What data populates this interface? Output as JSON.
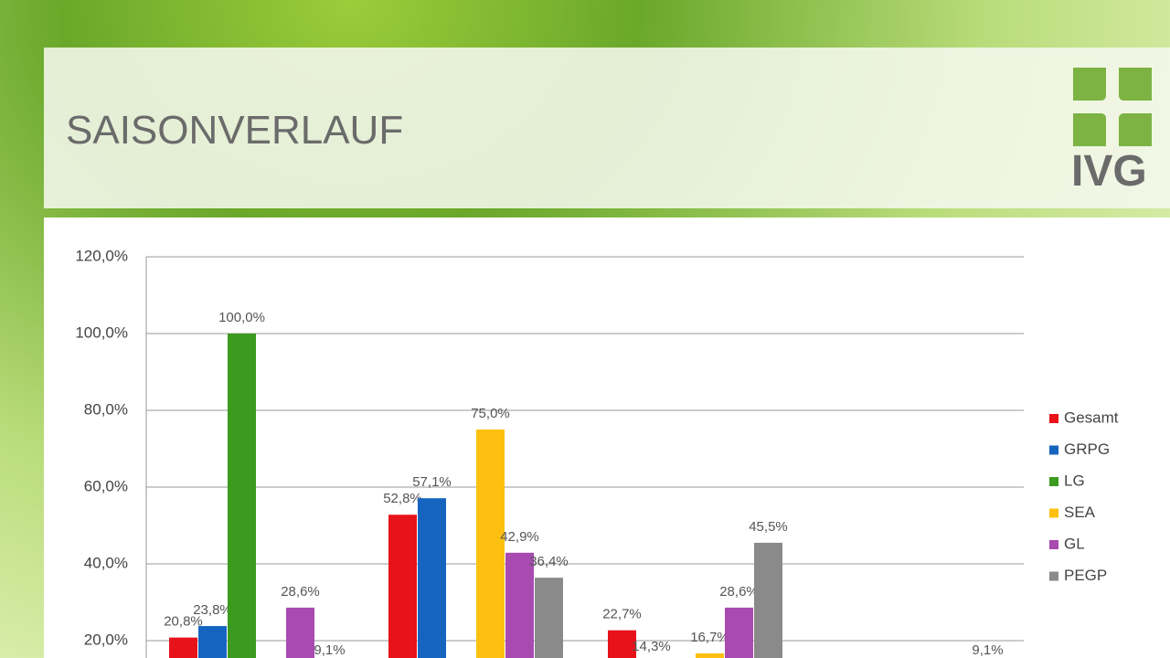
{
  "header": {
    "title": "SAISONVERLAUF",
    "logo": "IVG"
  },
  "chart_data": {
    "type": "bar",
    "categories": [
      null,
      null,
      null,
      null
    ],
    "series": [
      {
        "name": "Gesamt",
        "color": "#e8121b",
        "values": [
          20.8,
          52.8,
          22.7,
          null
        ],
        "value_labels": [
          "20,8%",
          "52,8%",
          "22,7%",
          null
        ]
      },
      {
        "name": "GRPG",
        "color": "#1565c0",
        "values": [
          23.8,
          57.1,
          14.3,
          null
        ],
        "value_labels": [
          "23,8%",
          "57,1%",
          "14,3%",
          null
        ]
      },
      {
        "name": "LG",
        "color": "#3c9a1e",
        "values": [
          100,
          null,
          null,
          null
        ],
        "value_labels": [
          "100,0%",
          null,
          null,
          null
        ]
      },
      {
        "name": "SEA",
        "color": "#fdc010",
        "values": [
          null,
          75,
          16.7,
          null
        ],
        "value_labels": [
          null,
          "75,0%",
          "16,7%",
          null
        ]
      },
      {
        "name": "GL",
        "color": "#a94ab0",
        "values": [
          28.6,
          42.9,
          28.6,
          null
        ],
        "value_labels": [
          "28,6%",
          "42,9%",
          "28,6%",
          null
        ]
      },
      {
        "name": "PEGP",
        "color": "#8a8a8a",
        "values": [
          9.1,
          36.4,
          45.5,
          9.1
        ],
        "value_labels": [
          "9,1%",
          "36,4%",
          "45,5%",
          "9,1%"
        ]
      }
    ],
    "ylim": [
      0,
      120
    ],
    "yticks": [
      {
        "value": 20,
        "label": "20,0%"
      },
      {
        "value": 40,
        "label": "40,0%"
      },
      {
        "value": 60,
        "label": "60,0%"
      },
      {
        "value": 80,
        "label": "80,0%"
      },
      {
        "value": 100,
        "label": "100,0%"
      },
      {
        "value": 120,
        "label": "120,0%"
      }
    ],
    "grid": true,
    "legend": "right"
  }
}
